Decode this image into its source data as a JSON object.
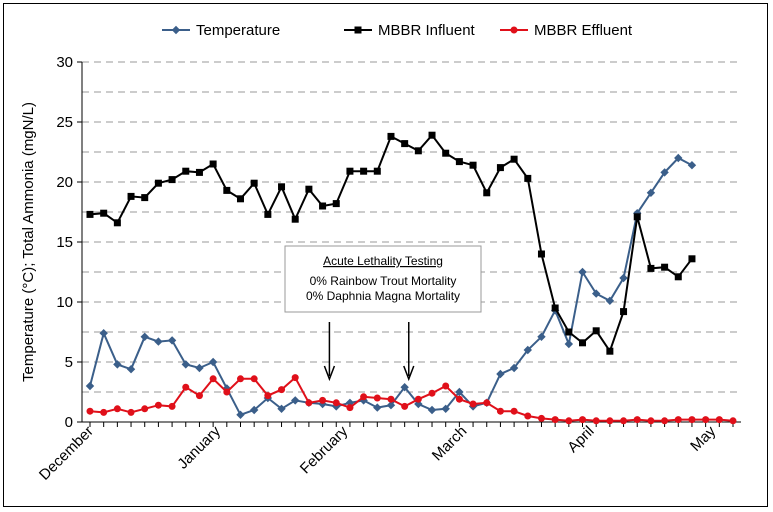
{
  "chart_data": {
    "type": "line",
    "title": "",
    "xlabel": "",
    "ylabel": "Temperature (°C); Total Ammonia (mgN/L)",
    "ylim": [
      0,
      30
    ],
    "yticks": [
      0,
      5,
      10,
      15,
      20,
      25,
      30
    ],
    "grid": true,
    "legend_position": "top",
    "x_index": [
      0,
      1,
      2,
      3,
      4,
      5,
      6,
      7,
      8,
      9,
      10,
      11,
      12,
      13,
      14,
      15,
      16,
      17,
      18,
      19,
      20,
      21,
      22,
      23,
      24,
      25,
      26,
      27,
      28,
      29,
      30,
      31,
      32,
      33,
      34,
      35,
      36,
      37,
      38,
      39,
      40,
      41,
      42,
      43,
      44,
      45,
      46,
      47
    ],
    "x_tick_labels": [
      {
        "label": "December",
        "at": 0
      },
      {
        "label": "January",
        "at": 9.3
      },
      {
        "label": "February",
        "at": 18.6
      },
      {
        "label": "March",
        "at": 27.3
      },
      {
        "label": "April",
        "at": 36.6
      },
      {
        "label": "May",
        "at": 45.5
      }
    ],
    "series": [
      {
        "name": "Temperature",
        "color": "#3b5f8a",
        "marker": "diamond",
        "values": [
          3.0,
          7.4,
          4.8,
          4.4,
          7.1,
          6.7,
          6.8,
          4.8,
          4.5,
          5.0,
          2.8,
          0.6,
          1.0,
          2.0,
          1.1,
          1.8,
          1.6,
          1.5,
          1.3,
          1.6,
          1.8,
          1.2,
          1.4,
          2.9,
          1.5,
          1.0,
          1.1,
          2.5,
          1.3,
          1.6,
          4.0,
          4.5,
          6.0,
          7.1,
          9.3,
          6.5,
          12.5,
          10.7,
          10.1,
          12.0,
          17.4,
          19.1,
          20.8,
          22.0,
          21.4
        ]
      },
      {
        "name": "MBBR Influent",
        "color": "#000000",
        "marker": "square",
        "values": [
          17.3,
          17.4,
          16.6,
          18.8,
          18.7,
          19.9,
          20.2,
          20.9,
          20.8,
          21.5,
          19.3,
          18.6,
          19.9,
          17.3,
          19.6,
          16.9,
          19.4,
          18.0,
          18.2,
          20.9,
          20.9,
          20.9,
          23.8,
          23.2,
          22.6,
          23.9,
          22.4,
          21.7,
          21.4,
          19.1,
          21.2,
          21.9,
          20.3,
          14.0,
          9.5,
          7.5,
          6.6,
          7.6,
          5.9,
          9.2,
          17.1,
          12.8,
          12.9,
          12.1,
          13.6
        ]
      },
      {
        "name": "MBBR Effluent",
        "color": "#e0101a",
        "marker": "circle",
        "values": [
          0.9,
          0.8,
          1.1,
          0.8,
          1.1,
          1.4,
          1.3,
          2.9,
          2.2,
          3.6,
          2.5,
          3.6,
          3.6,
          2.2,
          2.7,
          3.7,
          1.6,
          1.8,
          1.6,
          1.2,
          2.1,
          2.0,
          1.9,
          1.3,
          1.9,
          2.4,
          3.0,
          1.9,
          1.5,
          1.6,
          0.9,
          0.9,
          0.5,
          0.3,
          0.2,
          0.1,
          0.2,
          0.1,
          0.1,
          0.1,
          0.2,
          0.1,
          0.1,
          0.2,
          0.2,
          0.2,
          0.2,
          0.1
        ]
      }
    ],
    "annotation": {
      "heading": "Acute Lethality Testing",
      "lines": [
        "0% Rainbow Trout Mortality",
        "0% Daphnia Magna Mortality"
      ],
      "arrow_at_x": [
        17.5,
        23.3
      ]
    }
  }
}
